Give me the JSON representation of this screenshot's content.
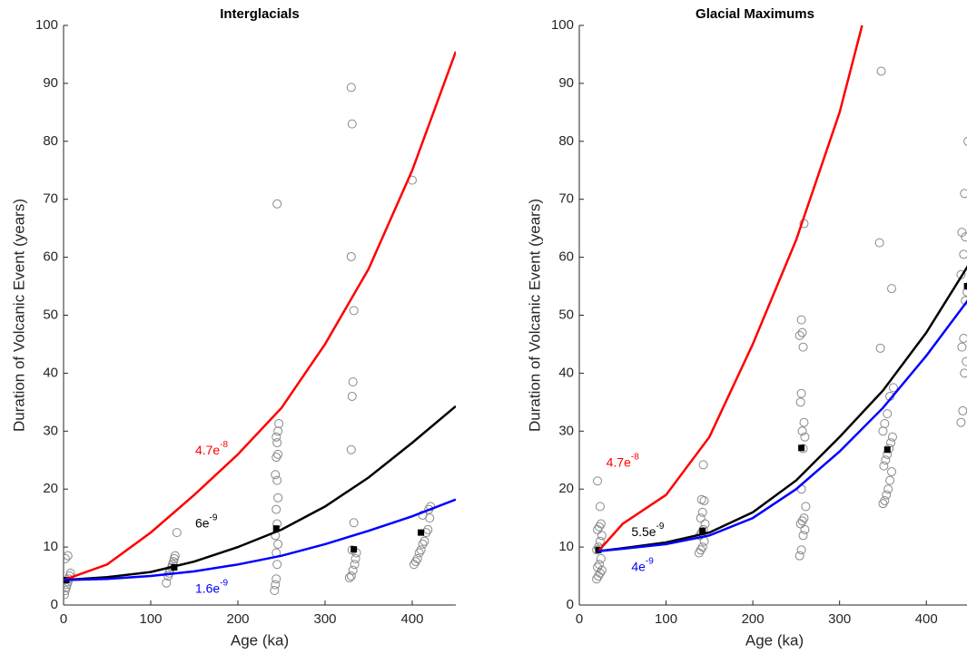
{
  "chart_data": [
    {
      "type": "line",
      "title": "Interglacials",
      "x_label": "Age (ka)",
      "y_label": "Duration of Volcanic Event (years)",
      "xlim": [
        0,
        450
      ],
      "ylim": [
        0,
        100
      ],
      "xticks": [
        0,
        100,
        200,
        300,
        400
      ],
      "yticks": [
        0,
        10,
        20,
        30,
        40,
        50,
        60,
        70,
        80,
        90,
        100
      ],
      "series": [
        {
          "style": "circles",
          "color": "#888888",
          "x": [
            1,
            2,
            3,
            4,
            5,
            6,
            7,
            8,
            2,
            5,
            118,
            120,
            121,
            122,
            124,
            125,
            126,
            127,
            128,
            130,
            242,
            243,
            244,
            245,
            244,
            246,
            243,
            245,
            244,
            246,
            245,
            243,
            244,
            246,
            245,
            244,
            246,
            247,
            245,
            328,
            330,
            332,
            334,
            335,
            336,
            331,
            333,
            330,
            331,
            332,
            333,
            330,
            331,
            330,
            402,
            404,
            406,
            408,
            410,
            412,
            414,
            416,
            418,
            420,
            412,
            419,
            421,
            400
          ],
          "values": [
            1.8,
            2.5,
            3,
            3.5,
            4,
            4.5,
            5,
            5.5,
            8,
            8.5,
            3.8,
            5,
            5.5,
            6,
            6.5,
            7,
            7.5,
            8,
            8.5,
            12.5,
            2.5,
            3.5,
            4.5,
            7,
            9,
            10.5,
            12,
            14,
            16.5,
            18.5,
            21.5,
            22.5,
            25.5,
            26,
            28,
            29,
            30,
            31.3,
            69.2,
            4.7,
            5,
            6,
            7,
            8,
            9,
            9.5,
            14.2,
            26.8,
            36,
            38.5,
            50.8,
            60.1,
            83,
            89.3,
            7,
            7.5,
            8,
            9,
            9.5,
            10.5,
            11,
            12.5,
            13,
            15,
            15.5,
            16.5,
            17,
            73.3
          ]
        },
        {
          "style": "squares",
          "color": "#000000",
          "x": [
            3,
            127,
            244,
            333,
            410
          ],
          "values": [
            4.3,
            6.5,
            13.2,
            9.6,
            12.5
          ]
        },
        {
          "style": "line",
          "color": "#ff0000",
          "label": "4.7e",
          "label_sup": "-8",
          "x": [
            0,
            50,
            100,
            150,
            200,
            250,
            300,
            350,
            400,
            450
          ],
          "values": [
            4.3,
            7,
            12.5,
            19,
            26,
            34,
            45,
            58,
            75,
            95.5
          ]
        },
        {
          "style": "line",
          "color": "#000000",
          "label": "6e",
          "label_sup": "-9",
          "x": [
            0,
            50,
            100,
            150,
            200,
            250,
            300,
            350,
            400,
            450
          ],
          "values": [
            4.3,
            4.8,
            5.7,
            7.5,
            10,
            13,
            17,
            22,
            28,
            34.3
          ]
        },
        {
          "style": "line",
          "color": "#0000ff",
          "label": "1.6e",
          "label_sup": "-9",
          "x": [
            0,
            50,
            100,
            150,
            200,
            250,
            300,
            350,
            400,
            450
          ],
          "values": [
            4.3,
            4.5,
            5,
            5.8,
            7,
            8.5,
            10.5,
            12.8,
            15.3,
            18.2
          ]
        }
      ]
    },
    {
      "type": "line",
      "title": "Glacial Maximums",
      "x_label": "Age (ka)",
      "y_label": "Duration of Volcanic Event (years)",
      "xlim": [
        0,
        450
      ],
      "ylim": [
        0,
        100
      ],
      "xticks": [
        0,
        100,
        200,
        300,
        400
      ],
      "yticks": [
        0,
        10,
        20,
        30,
        40,
        50,
        60,
        70,
        80,
        90,
        100
      ],
      "series": [
        {
          "style": "circles",
          "color": "#888888",
          "x": [
            20,
            22,
            24,
            26,
            21,
            23,
            25,
            20,
            22,
            24,
            26,
            21,
            23,
            25,
            24,
            21,
            138,
            140,
            142,
            144,
            139,
            141,
            143,
            145,
            140,
            142,
            144,
            141,
            143,
            254,
            256,
            258,
            260,
            255,
            257,
            259,
            261,
            256,
            258,
            260,
            257,
            259,
            255,
            256,
            258,
            254,
            257,
            256,
            259,
            350,
            352,
            354,
            356,
            358,
            360,
            351,
            353,
            355,
            357,
            359,
            361,
            350,
            352,
            355,
            358,
            362,
            347,
            360,
            346,
            348,
            440,
            442,
            444,
            446,
            441,
            443,
            445,
            447,
            449,
            440,
            443,
            445,
            441,
            444,
            448
          ],
          "values": [
            4.5,
            5,
            5.5,
            6,
            6.5,
            7,
            8,
            9.5,
            10,
            11,
            12,
            13,
            13.5,
            14,
            17,
            21.4,
            9,
            9.5,
            10,
            11,
            12,
            12.5,
            13,
            14,
            15,
            16,
            18,
            18.2,
            24.2,
            8.5,
            9.5,
            12,
            13,
            14,
            14.5,
            15,
            17,
            20,
            27,
            29,
            30,
            31.5,
            35,
            36.5,
            44.5,
            46.5,
            47,
            49.2,
            65.8,
            17.5,
            18,
            19,
            20,
            21.5,
            23,
            24,
            25,
            26,
            27,
            28,
            29,
            30,
            31.3,
            33,
            36,
            37.5,
            44.3,
            54.6,
            62.5,
            92.1,
            31.5,
            33.5,
            40,
            42,
            44.5,
            46,
            52.5,
            54,
            55,
            57,
            60.5,
            63.5,
            64.3,
            71,
            80
          ]
        },
        {
          "style": "squares",
          "color": "#000000",
          "x": [
            22,
            142,
            256,
            355,
            447
          ],
          "values": [
            9.5,
            12.8,
            27.1,
            26.8,
            55
          ]
        },
        {
          "style": "line",
          "color": "#ff0000",
          "label": "4.7e",
          "label_sup": "-8",
          "x": [
            22,
            50,
            100,
            150,
            200,
            250,
            300,
            326
          ],
          "values": [
            9.3,
            14,
            19,
            29,
            45,
            63,
            85,
            100
          ]
        },
        {
          "style": "line",
          "color": "#000000",
          "label": "5.5e",
          "label_sup": "-9",
          "x": [
            22,
            50,
            100,
            150,
            200,
            250,
            300,
            350,
            400,
            450
          ],
          "values": [
            9.3,
            9.8,
            10.8,
            12.5,
            16,
            21.5,
            29,
            37,
            47,
            59
          ]
        },
        {
          "style": "line",
          "color": "#0000ff",
          "label": "4e",
          "label_sup": "-9",
          "x": [
            22,
            50,
            100,
            150,
            200,
            250,
            300,
            350,
            400,
            450
          ],
          "values": [
            9.3,
            9.7,
            10.5,
            12,
            15,
            20,
            26.5,
            34,
            43,
            53
          ]
        }
      ]
    }
  ]
}
